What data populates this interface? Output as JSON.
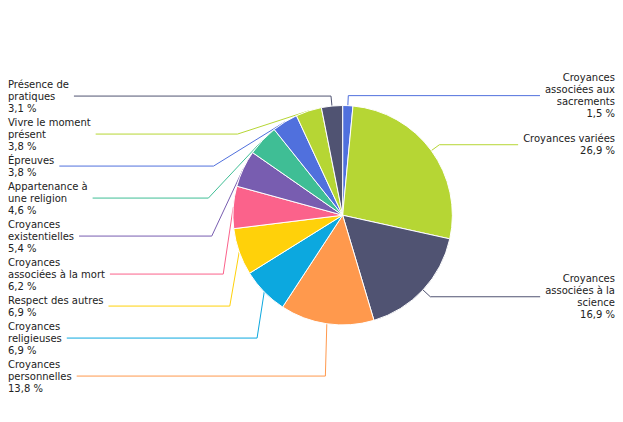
{
  "chart_data": {
    "type": "pie",
    "categories": [
      "Croyances\nassociées aux\nsacrements\n1,5 %",
      "Croyances variées\n26,9 %",
      "Croyances\nassociées à la\nscience\n16,9 %",
      "Croyances\npersonnelles\n13,8 %",
      "Croyances\nreligieuses\n6,9 %",
      "Respect des autres\n6,9 %",
      "Croyances\nassociées à la mort\n6,2 %",
      "Croyances\nexistentielles\n5,4 %",
      "Appartenance à\nune religion\n4,6 %",
      "Épreuves\n3,8 %",
      "Vivre le moment\nprésent\n3,8 %",
      "Présence de\npratiques\n3,1 %"
    ],
    "values": [
      1.5,
      26.9,
      16.9,
      13.8,
      6.9,
      6.9,
      6.2,
      5.4,
      4.6,
      3.8,
      3.8,
      3.1
    ]
  }
}
